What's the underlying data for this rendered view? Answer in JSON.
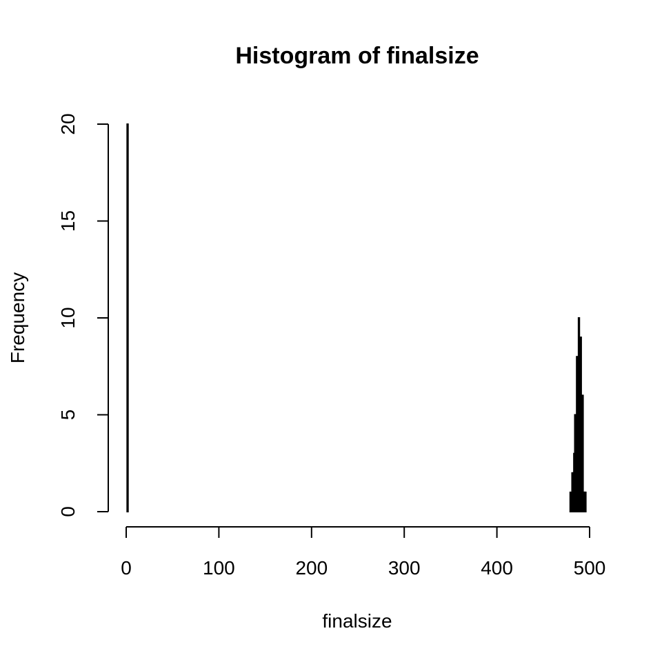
{
  "chart_data": {
    "type": "bar",
    "title": "Histogram of finalsize",
    "xlabel": "finalsize",
    "ylabel": "Frequency",
    "xlim": [
      0,
      500
    ],
    "ylim": [
      0,
      20
    ],
    "xticks": [
      0,
      100,
      200,
      300,
      400,
      500
    ],
    "yticks": [
      0,
      5,
      10,
      15,
      20
    ],
    "bin_width": 1,
    "bins": [
      {
        "x0": 0,
        "x1": 1,
        "count": 0
      },
      {
        "x0": 1,
        "x1": 2,
        "count": 20
      },
      {
        "x0": 2,
        "x1": 479,
        "count": 0
      },
      {
        "x0": 479,
        "x1": 480,
        "count": 1
      },
      {
        "x0": 480,
        "x1": 481,
        "count": 0
      },
      {
        "x0": 481,
        "x1": 482,
        "count": 2
      },
      {
        "x0": 482,
        "x1": 483,
        "count": 2
      },
      {
        "x0": 483,
        "x1": 484,
        "count": 3
      },
      {
        "x0": 484,
        "x1": 485,
        "count": 5
      },
      {
        "x0": 485,
        "x1": 486,
        "count": 5
      },
      {
        "x0": 486,
        "x1": 487,
        "count": 8
      },
      {
        "x0": 487,
        "x1": 488,
        "count": 6
      },
      {
        "x0": 488,
        "x1": 489,
        "count": 10
      },
      {
        "x0": 489,
        "x1": 490,
        "count": 7
      },
      {
        "x0": 490,
        "x1": 491,
        "count": 9
      },
      {
        "x0": 491,
        "x1": 492,
        "count": 6
      },
      {
        "x0": 492,
        "x1": 493,
        "count": 6
      },
      {
        "x0": 493,
        "x1": 494,
        "count": 1
      },
      {
        "x0": 494,
        "x1": 495,
        "count": 1
      },
      {
        "x0": 495,
        "x1": 496,
        "count": 1
      }
    ],
    "grid": false,
    "legend": "none"
  }
}
